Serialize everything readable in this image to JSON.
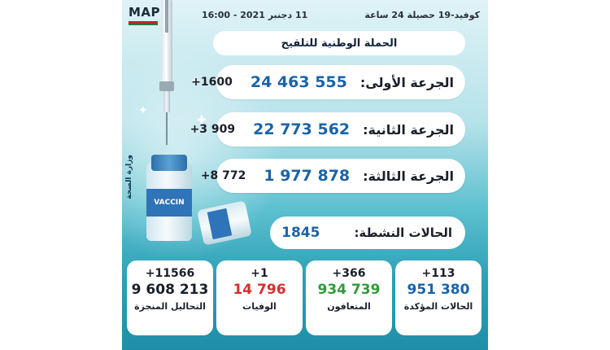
{
  "header": {
    "logo": "MAP",
    "date_time": "11 دجنبر 2021 - 16:00",
    "topic": "كوفيد-19 حصيلة 24 ساعة",
    "ministry": "وزارة الصحة"
  },
  "campaign_title": "الحملة الوطنية للتلقيح",
  "doses": [
    {
      "label": "الجرعة الأولى:",
      "value": "24 463 555",
      "delta": "+1600"
    },
    {
      "label": "الجرعة الثانية:",
      "value": "22 773 562",
      "delta": "+3 909"
    },
    {
      "label": "الجرعة الثالثة:",
      "value": "1 977 878",
      "delta": "+8 772"
    }
  ],
  "active_cases": {
    "label": "الحالات النشطة:",
    "value": "1845"
  },
  "stats": [
    {
      "delta": "+113",
      "value": "951 380",
      "label": "الحالات المؤكدة",
      "color": "#1b63a8"
    },
    {
      "delta": "+366",
      "value": "934 739",
      "label": "المتعافون",
      "color": "#2f9a3a"
    },
    {
      "delta": "+1",
      "value": "14 796",
      "label": "الوفيات",
      "color": "#d32f2f"
    },
    {
      "delta": "+11566",
      "value": "9 608 213",
      "label": "التحاليل المنجزة",
      "color": "#1a1f2a"
    }
  ],
  "vial_text": "VACCIN"
}
